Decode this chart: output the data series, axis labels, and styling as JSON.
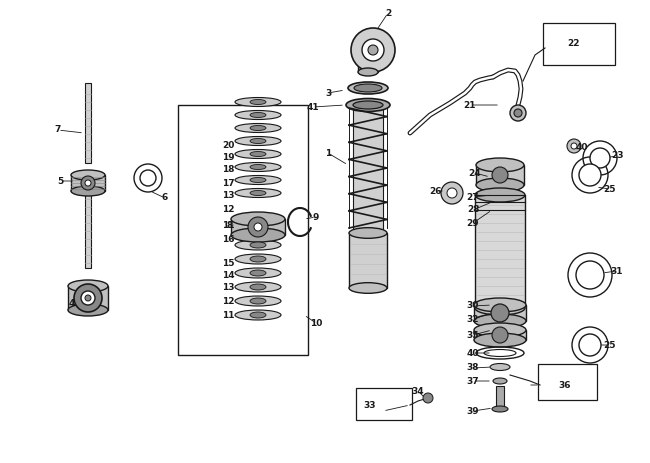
{
  "bg_color": "#ffffff",
  "line_color": "#1a1a1a",
  "fig_width": 6.5,
  "fig_height": 4.63,
  "dpi": 100
}
